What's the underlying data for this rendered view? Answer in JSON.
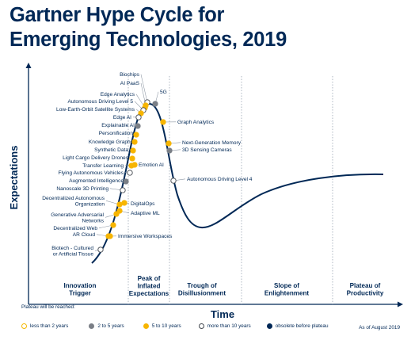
{
  "title_line1": "Gartner Hype Cycle for",
  "title_line2": "Emerging Technologies, 2019",
  "y_axis_label": "Expectations",
  "x_axis_label": "Time",
  "phases": [
    {
      "lines": [
        "Innovation",
        "Trigger"
      ]
    },
    {
      "lines": [
        "Peak of",
        "Inflated",
        "Expectations"
      ]
    },
    {
      "lines": [
        "Trough of",
        "Disillusionment"
      ]
    },
    {
      "lines": [
        "Slope of",
        "Enlightenment"
      ]
    },
    {
      "lines": [
        "Plateau of",
        "Productivity"
      ]
    }
  ],
  "legend": {
    "title": "Plateau will be reached:",
    "items": [
      {
        "key": "lt2",
        "label": "less than 2 years"
      },
      {
        "key": "2to5",
        "label": "2 to 5 years"
      },
      {
        "key": "5to10",
        "label": "5 to 10 years"
      },
      {
        "key": "gt10",
        "label": "more than 10 years"
      },
      {
        "key": "obsolete",
        "label": "obsolete before plateau"
      }
    ],
    "as_of": "As of August 2019"
  },
  "colors": {
    "navy": "#002856",
    "lt2": "#ffffff",
    "lt2_stroke": "#f5b800",
    "2to5": "#7a7f86",
    "5to10": "#f7b500",
    "gt10": "#ffffff",
    "gt10_stroke": "#43484f",
    "obsolete": "#002856"
  },
  "technologies": [
    {
      "name": "Biochips",
      "category": "gt10"
    },
    {
      "name": "AI PaaS",
      "category": "5to10"
    },
    {
      "name": "Edge Analytics",
      "category": "5to10"
    },
    {
      "name": "Autonomous Driving Level 5",
      "category": "gt10"
    },
    {
      "name": "Low-Earth-Orbit Satellite Systems",
      "category": "5to10"
    },
    {
      "name": "Edge AI",
      "category": "gt10"
    },
    {
      "name": "Explainable AI",
      "category": "2to5"
    },
    {
      "name": "Personification",
      "category": "5to10"
    },
    {
      "name": "Knowledge Graphs",
      "category": "5to10"
    },
    {
      "name": "Synthetic Data",
      "category": "5to10"
    },
    {
      "name": "Light Cargo Delivery Drones",
      "category": "5to10"
    },
    {
      "name": "Transfer Learning",
      "category": "5to10"
    },
    {
      "name": "Flying Autonomous Vehicles",
      "category": "gt10"
    },
    {
      "name": "Augmented Intelligence",
      "category": "2to5"
    },
    {
      "name": "Nanoscale 3D Printing",
      "category": "gt10"
    },
    {
      "name": "Decentralized Autonomous Organization",
      "category": "5to10"
    },
    {
      "name": "Generative Adversarial Networks",
      "category": "5to10"
    },
    {
      "name": "Decentralized Web",
      "category": "5to10"
    },
    {
      "name": "AR Cloud",
      "category": "5to10"
    },
    {
      "name": "Biotech - Cultured or Artificial Tissue",
      "category": "gt10"
    },
    {
      "name": "5G",
      "category": "2to5"
    },
    {
      "name": "Graph Analytics",
      "category": "5to10"
    },
    {
      "name": "Emotion AI",
      "category": "5to10"
    },
    {
      "name": "Next-Generation Memory",
      "category": "5to10"
    },
    {
      "name": "3D Sensing Cameras",
      "category": "2to5"
    },
    {
      "name": "Autonomous Driving Level 4",
      "category": "gt10"
    },
    {
      "name": "DigitalOps",
      "category": "5to10"
    },
    {
      "name": "Adaptive ML",
      "category": "5to10"
    },
    {
      "name": "Immersive Workspaces",
      "category": "5to10"
    }
  ]
}
